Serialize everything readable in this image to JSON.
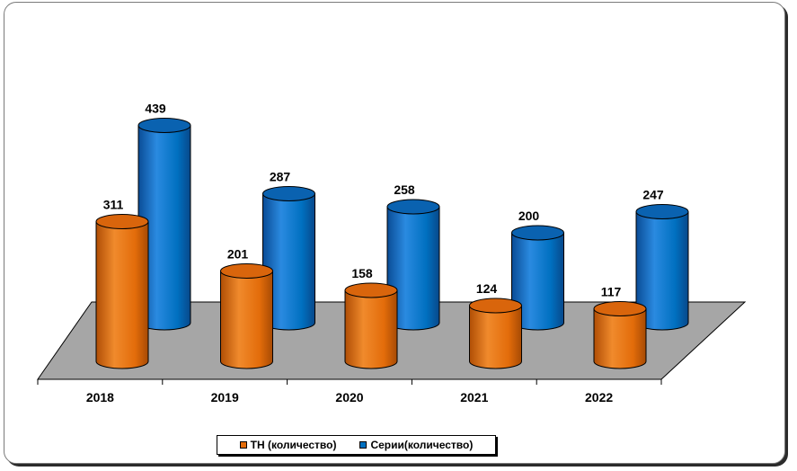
{
  "chart_data": {
    "type": "bar",
    "categories": [
      "2018",
      "2019",
      "2020",
      "2021",
      "2022"
    ],
    "series": [
      {
        "name": "ТН (количество)",
        "values": [
          311,
          201,
          158,
          124,
          117
        ],
        "color": "#E36C0A"
      },
      {
        "name": "Серии(количество)",
        "values": [
          439,
          287,
          258,
          200,
          247
        ],
        "color": "#0070C0"
      }
    ],
    "title": "",
    "xlabel": "",
    "ylabel": "",
    "ylim": [
      0,
      500
    ],
    "grid": false,
    "legend": "bottom",
    "floor_color": "#A6A6A6"
  }
}
